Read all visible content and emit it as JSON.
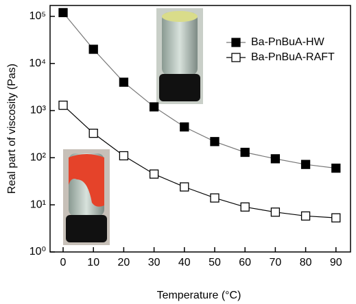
{
  "chart_data": {
    "type": "line",
    "xlabel": "Temperature (°C)",
    "ylabel": "Real part of viscosity (Pas)",
    "x": [
      0,
      10,
      20,
      30,
      40,
      50,
      60,
      70,
      80,
      90
    ],
    "series": [
      {
        "name": "Ba-PnBuA-HW",
        "color": "#000000",
        "line_color": "#777777",
        "marker": "filled",
        "values": [
          120000,
          20000,
          4000,
          1200,
          450,
          220,
          130,
          95,
          72,
          60
        ]
      },
      {
        "name": "Ba-PnBuA-RAFT",
        "color": "#000000",
        "line_color": "#000000",
        "marker": "open",
        "values": [
          1300,
          330,
          110,
          45,
          24,
          14,
          9,
          7,
          5.8,
          5.3
        ]
      }
    ],
    "xlim": [
      -4.3,
      94.8
    ],
    "ylim": [
      1,
      170000
    ],
    "ylog": true,
    "xticks": [
      0,
      10,
      20,
      30,
      40,
      50,
      60,
      70,
      80,
      90
    ],
    "yticks": [
      {
        "value": 1,
        "label": "10⁰"
      },
      {
        "value": 10,
        "label": "10¹"
      },
      {
        "value": 100,
        "label": "10²"
      },
      {
        "value": 1000,
        "label": "10³"
      },
      {
        "value": 10000,
        "label": "10⁴"
      },
      {
        "value": 100000,
        "label": "10⁵"
      }
    ],
    "legend": "upper right"
  }
}
